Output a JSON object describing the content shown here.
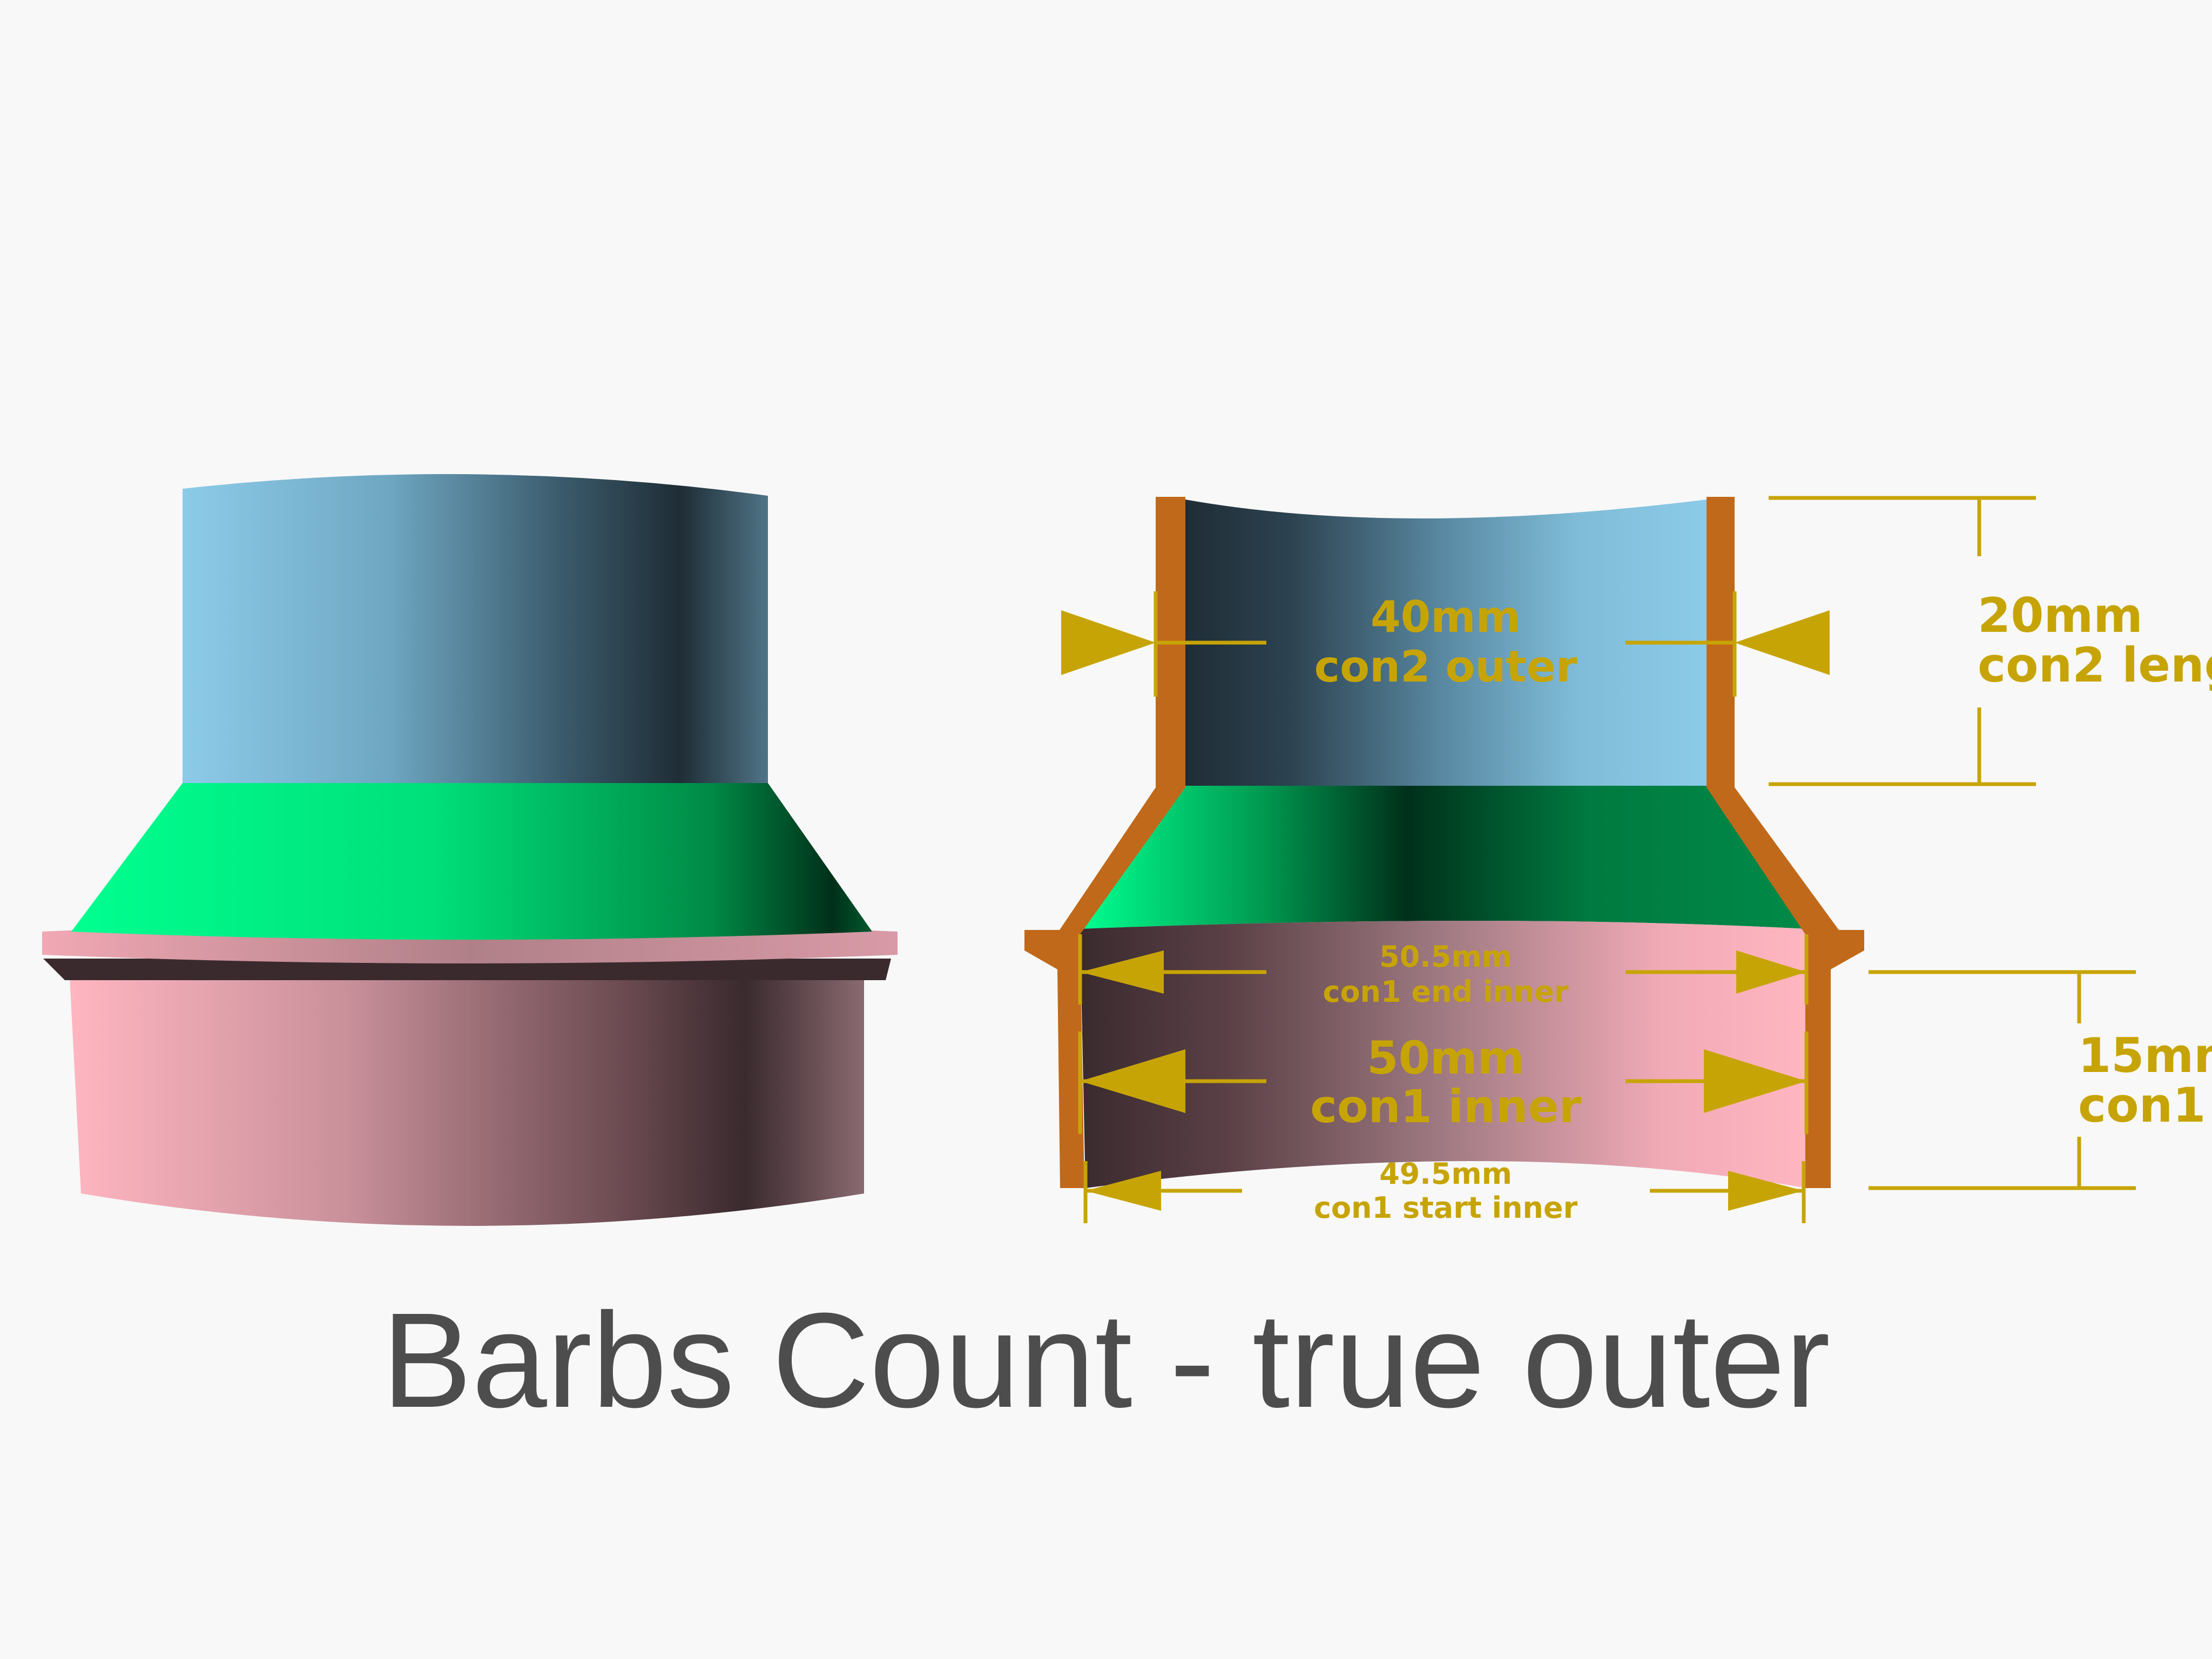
{
  "title": "Barbs Count - true outer",
  "colors": {
    "background": "#f8f8f8",
    "con2_section": "#87cbe8",
    "transition_section": "#00a65a",
    "con1_section": "#ffb6c1",
    "wall_cut": "#c0691a",
    "dimension": "#c7a406",
    "title": "#4d4d4d"
  },
  "dimensions": {
    "con2_outer": {
      "value": "40mm",
      "label": "con2 outer"
    },
    "con2_length": {
      "value": "20mm",
      "label": "con2 leng"
    },
    "con1_end_inner": {
      "value": "50.5mm",
      "label": "con1 end inner"
    },
    "con1_inner": {
      "value": "50mm",
      "label": "con1 inner"
    },
    "con1_start_inner": {
      "value": "49.5mm",
      "label": "con1 start inner"
    },
    "con1_length": {
      "value": "15mm",
      "label": "con1 l"
    }
  }
}
